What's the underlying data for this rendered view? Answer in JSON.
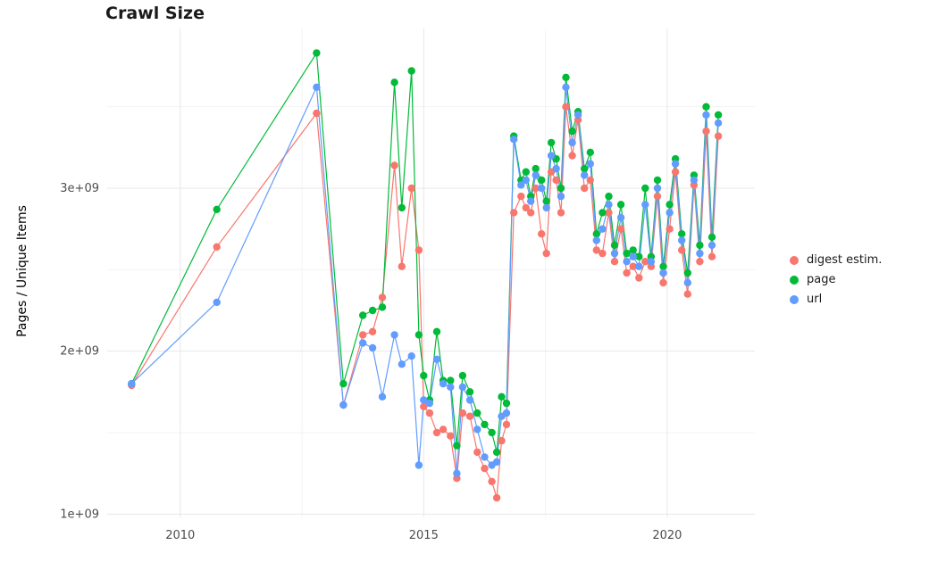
{
  "title": "Crawl Size",
  "ylabel": "Pages / Unique Items",
  "legend": {
    "items": [
      {
        "key": "digest-estim",
        "label": "digest estim.",
        "color": "#F8766D"
      },
      {
        "key": "page",
        "label": "page",
        "color": "#00BA38"
      },
      {
        "key": "url",
        "label": "url",
        "color": "#619CFF"
      }
    ]
  },
  "chart_data": {
    "type": "line",
    "title": "Crawl Size",
    "xlabel": "",
    "ylabel": "Pages / Unique Items",
    "values_unit": "billions (1e+09 pages / unique items)",
    "grid": true,
    "legend_position": "right",
    "xlim": [
      2008.5,
      2021.8
    ],
    "ylim": [
      0.98,
      3.98
    ],
    "x_ticks": [
      {
        "value": 2010,
        "label": "2010"
      },
      {
        "value": 2015,
        "label": "2015"
      },
      {
        "value": 2020,
        "label": "2020"
      }
    ],
    "y_ticks": [
      {
        "value": 1,
        "label": "1e+09"
      },
      {
        "value": 2,
        "label": "2e+09"
      },
      {
        "value": 3,
        "label": "3e+09"
      }
    ],
    "x_minor": [
      2012.5,
      2017.5
    ],
    "y_minor": [
      1.5,
      2.5,
      3.5
    ],
    "x": [
      2009.0,
      2010.75,
      2012.8,
      2013.35,
      2013.75,
      2013.95,
      2014.15,
      2014.4,
      2014.55,
      2014.75,
      2014.9,
      2015.0,
      2015.12,
      2015.27,
      2015.4,
      2015.55,
      2015.68,
      2015.8,
      2015.95,
      2016.1,
      2016.25,
      2016.4,
      2016.5,
      2016.6,
      2016.7,
      2016.85,
      2017.0,
      2017.1,
      2017.2,
      2017.3,
      2017.42,
      2017.52,
      2017.62,
      2017.72,
      2017.82,
      2017.92,
      2018.05,
      2018.17,
      2018.3,
      2018.42,
      2018.55,
      2018.67,
      2018.8,
      2018.92,
      2019.05,
      2019.17,
      2019.3,
      2019.42,
      2019.55,
      2019.67,
      2019.8,
      2019.92,
      2020.05,
      2020.17,
      2020.3,
      2020.42,
      2020.55,
      2020.67,
      2020.8,
      2020.92,
      2021.05
    ],
    "series": [
      {
        "name": "digest estim.",
        "color": "#F8766D",
        "values": [
          1.79,
          2.64,
          3.46,
          1.67,
          2.1,
          2.12,
          2.33,
          3.14,
          2.52,
          3.0,
          2.62,
          1.66,
          1.62,
          1.5,
          1.52,
          1.48,
          1.22,
          1.62,
          1.6,
          1.38,
          1.28,
          1.2,
          1.1,
          1.45,
          1.55,
          2.85,
          2.95,
          2.88,
          2.85,
          3.0,
          2.72,
          2.6,
          3.1,
          3.05,
          2.85,
          3.5,
          3.2,
          3.42,
          3.0,
          3.05,
          2.62,
          2.6,
          2.85,
          2.55,
          2.75,
          2.48,
          2.52,
          2.45,
          2.55,
          2.52,
          2.95,
          2.42,
          2.75,
          3.1,
          2.62,
          2.35,
          3.02,
          2.55,
          3.35,
          2.58,
          3.32
        ]
      },
      {
        "name": "page",
        "color": "#00BA38",
        "values": [
          1.8,
          2.87,
          3.83,
          1.8,
          2.22,
          2.25,
          2.27,
          3.65,
          2.88,
          3.72,
          2.1,
          1.85,
          1.7,
          2.12,
          1.82,
          1.82,
          1.42,
          1.85,
          1.75,
          1.62,
          1.55,
          1.5,
          1.38,
          1.72,
          1.68,
          3.32,
          3.05,
          3.1,
          2.95,
          3.12,
          3.05,
          2.92,
          3.28,
          3.18,
          3.0,
          3.68,
          3.35,
          3.47,
          3.12,
          3.22,
          2.72,
          2.85,
          2.95,
          2.65,
          2.9,
          2.6,
          2.62,
          2.58,
          3.0,
          2.58,
          3.05,
          2.52,
          2.9,
          3.18,
          2.72,
          2.48,
          3.08,
          2.65,
          3.5,
          2.7,
          3.45
        ]
      },
      {
        "name": "url",
        "color": "#619CFF",
        "values": [
          1.8,
          2.3,
          3.62,
          1.67,
          2.05,
          2.02,
          1.72,
          2.1,
          1.92,
          1.97,
          1.3,
          1.7,
          1.68,
          1.95,
          1.8,
          1.78,
          1.25,
          1.78,
          1.7,
          1.52,
          1.35,
          1.3,
          1.32,
          1.6,
          1.62,
          3.3,
          3.02,
          3.05,
          2.92,
          3.08,
          3.0,
          2.88,
          3.2,
          3.12,
          2.95,
          3.62,
          3.28,
          3.45,
          3.08,
          3.15,
          2.68,
          2.75,
          2.9,
          2.6,
          2.82,
          2.55,
          2.58,
          2.52,
          2.9,
          2.55,
          3.0,
          2.48,
          2.85,
          3.15,
          2.68,
          2.42,
          3.05,
          2.6,
          3.45,
          2.65,
          3.4
        ]
      }
    ]
  }
}
